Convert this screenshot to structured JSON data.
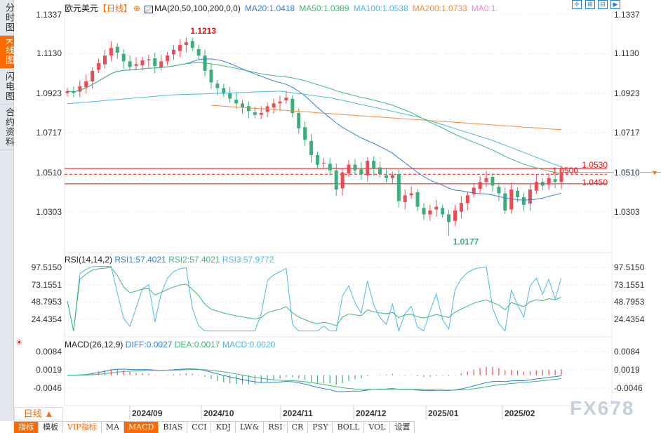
{
  "sidebar": {
    "items": [
      {
        "label": "分时图",
        "active": false
      },
      {
        "label": "K线图",
        "active": true
      },
      {
        "label": "闪电图",
        "active": false
      },
      {
        "label": "合约资料",
        "active": false
      }
    ]
  },
  "legend": {
    "symbol": "欧元美元",
    "period": "【日线】",
    "ma_label": "MA(20,50,100,200,0,0)",
    "ma20": "MA20:1.0418",
    "ma50": "MA50:1.0389",
    "ma100": "MA100:1.0538",
    "ma200": "MA200:1.0733",
    "ma0": "MA0:1."
  },
  "toolbar": {
    "icons": [
      "crosshair-icon",
      "zoom-in-icon",
      "zoom-out-icon",
      "move-right-icon"
    ]
  },
  "colors": {
    "up": "#ee4b55",
    "down": "#3cae7c",
    "ma20": "#2f7fe0",
    "ma50": "#3cb878",
    "ma100": "#4ab8e8",
    "ma200": "#f58a3c",
    "ma0": "#ee88cc",
    "accent": "#ff6a00",
    "level": "#e81010"
  },
  "rsi": {
    "label": "RSI(14,14,2)",
    "rsi1": "RSI1:57.4021",
    "rsi2": "RSI2:57.4021",
    "rsi3": "RSI3:57.9772"
  },
  "macd": {
    "label": "MACD(26,12,9)",
    "diff": "DIFF:0.0027",
    "dea": "DEA:0.0017",
    "macd": "MACD:0.0020"
  },
  "bottom": {
    "period_button": "日线 ▲",
    "tabs": [
      "指标",
      "模板",
      "VIP指标",
      "MA",
      "MACD",
      "BIAS",
      "CCI",
      "KDJ",
      "LW&",
      "RSI",
      "CR",
      "PSY",
      "BOLL",
      "VOL",
      "设置"
    ],
    "active_tabs": [
      "指标",
      "MACD"
    ]
  },
  "watermark": "FX678",
  "chart_data": [
    {
      "type": "candlestick",
      "title": "欧元美元 日线",
      "yticks": [
        "1.1337",
        "1.1130",
        "1.0923",
        "1.0717",
        "1.0510",
        "1.0303"
      ],
      "ylim": [
        1.0177,
        1.1337
      ],
      "xticks": [
        "2024/09",
        "2024/10",
        "2024/11",
        "2024/12",
        "2025/01",
        "2025/02"
      ],
      "annotations": {
        "high": "1.1213",
        "low": "1.0177",
        "current": "1.0510"
      },
      "levels": [
        "1.0530",
        "1.0500",
        "1.0450"
      ],
      "close": [
        1.0934,
        1.0925,
        1.096,
        1.0985,
        1.104,
        1.108,
        1.112,
        1.116,
        1.1135,
        1.109,
        1.106,
        1.1075,
        1.1095,
        1.11,
        1.1065,
        1.109,
        1.112,
        1.115,
        1.1175,
        1.119,
        1.116,
        1.112,
        1.104,
        1.098,
        1.095,
        1.092,
        1.0895,
        1.087,
        1.085,
        1.083,
        1.081,
        1.082,
        1.0855,
        1.087,
        1.088,
        1.09,
        1.082,
        1.074,
        1.068,
        1.06,
        1.055,
        1.056,
        1.052,
        1.042,
        1.051,
        1.055,
        1.052,
        1.05,
        1.057,
        1.053,
        1.05,
        1.048,
        1.0495,
        1.036,
        1.039,
        1.04,
        1.033,
        1.029,
        1.031,
        1.033,
        1.029,
        1.025,
        1.031,
        1.035,
        1.039,
        1.043,
        1.046,
        1.048,
        1.044,
        1.04,
        1.031,
        1.042,
        1.038,
        1.034,
        1.042,
        1.046,
        1.044,
        1.048,
        1.046,
        1.051
      ],
      "ma100": [
        1.0868,
        1.0871,
        1.0874,
        1.0876,
        1.0879,
        1.0882,
        1.0885,
        1.0888,
        1.089,
        1.0893,
        1.0896,
        1.0899,
        1.0901,
        1.0904,
        1.0907,
        1.091,
        1.0912,
        1.0915,
        1.0916,
        1.0917,
        1.0918,
        1.0919,
        1.092,
        1.0922,
        1.0923,
        1.0924,
        1.0925,
        1.0926,
        1.0927,
        1.0928,
        1.093,
        1.0931,
        1.0932,
        1.0933,
        1.0934,
        1.093,
        1.0925,
        1.0921,
        1.0917,
        1.0913,
        1.0908,
        1.0904,
        1.09,
        1.0893,
        1.0886,
        1.0879,
        1.0871,
        1.0864,
        1.0857,
        1.085,
        1.0843,
        1.0836,
        1.0829,
        1.0821,
        1.0814,
        1.0807,
        1.08,
        1.079,
        1.0779,
        1.0769,
        1.0759,
        1.0749,
        1.0738,
        1.0728,
        1.0718,
        1.0708,
        1.0697,
        1.0687,
        1.0677,
        1.0664,
        1.0652,
        1.0639,
        1.0626,
        1.0614,
        1.0601,
        1.0588,
        1.0576,
        1.0563,
        1.0551,
        1.0538
      ],
      "ma200": [
        null,
        null,
        null,
        null,
        null,
        null,
        null,
        null,
        null,
        null,
        null,
        null,
        null,
        null,
        null,
        null,
        null,
        null,
        null,
        null,
        null,
        null,
        null,
        1.086,
        1.0858,
        1.0855,
        1.0853,
        1.0851,
        1.0849,
        1.0846,
        1.0844,
        1.0842,
        1.084,
        1.0837,
        1.0835,
        1.0833,
        1.083,
        1.0828,
        1.0826,
        1.0824,
        1.0821,
        1.0819,
        1.0817,
        1.0814,
        1.0812,
        1.081,
        1.0808,
        1.0805,
        1.0803,
        1.0801,
        1.0799,
        1.0796,
        1.0794,
        1.0792,
        1.0789,
        1.0787,
        1.0785,
        1.0783,
        1.078,
        1.0778,
        1.0776,
        1.0774,
        1.0771,
        1.0769,
        1.0767,
        1.0764,
        1.0762,
        1.076,
        1.0758,
        1.0755,
        1.0753,
        1.0751,
        1.0749,
        1.0746,
        1.0744,
        1.0742,
        1.0739,
        1.0737,
        1.0735,
        1.0733
      ]
    },
    {
      "type": "line",
      "title": "RSI(14,14,2)",
      "yticks": [
        "97.5150",
        "73.1551",
        "48.7953",
        "24.4354"
      ],
      "ylim": [
        24.4354,
        97.515
      ]
    },
    {
      "type": "bar",
      "title": "MACD(26,12,9)",
      "yticks": [
        "0.0084",
        "0.0019",
        "-0.0046"
      ],
      "ylim": [
        -0.0046,
        0.0084
      ]
    }
  ]
}
